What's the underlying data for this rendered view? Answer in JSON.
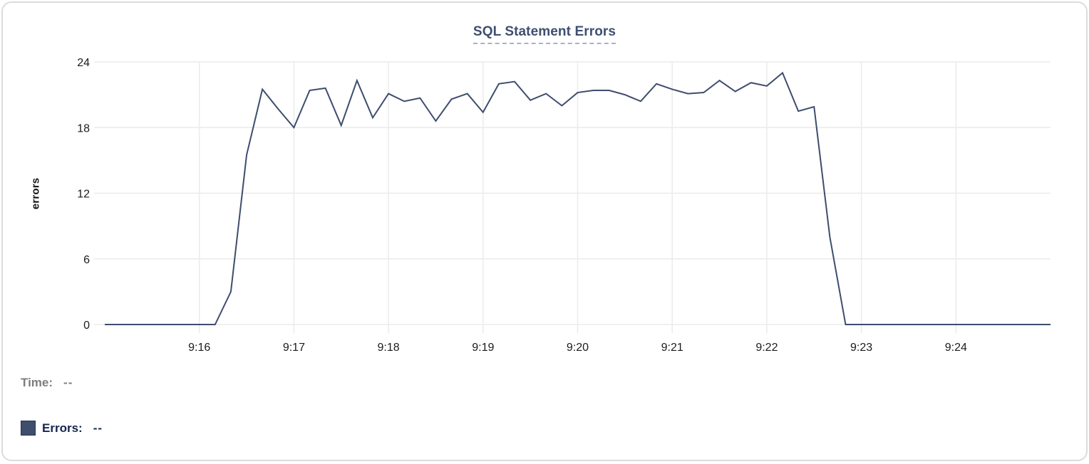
{
  "chart_data": {
    "type": "line",
    "title": "SQL Statement Errors",
    "ylabel": "errors",
    "xlabel": "",
    "ylim": [
      0,
      24
    ],
    "y_ticks": [
      0,
      6,
      12,
      18,
      24
    ],
    "x_ticks": [
      "9:16",
      "9:17",
      "9:18",
      "9:19",
      "9:20",
      "9:21",
      "9:22",
      "9:23",
      "9:24"
    ],
    "grid": true,
    "legend_position": "bottom-left",
    "x": [
      "9:15:00",
      "9:15:10",
      "9:15:20",
      "9:15:30",
      "9:15:40",
      "9:15:50",
      "9:16:00",
      "9:16:10",
      "9:16:20",
      "9:16:30",
      "9:16:40",
      "9:16:50",
      "9:17:00",
      "9:17:10",
      "9:17:20",
      "9:17:30",
      "9:17:40",
      "9:17:50",
      "9:18:00",
      "9:18:10",
      "9:18:20",
      "9:18:30",
      "9:18:40",
      "9:18:50",
      "9:19:00",
      "9:19:10",
      "9:19:20",
      "9:19:30",
      "9:19:40",
      "9:19:50",
      "9:20:00",
      "9:20:10",
      "9:20:20",
      "9:20:30",
      "9:20:40",
      "9:20:50",
      "9:21:00",
      "9:21:10",
      "9:21:20",
      "9:21:30",
      "9:21:40",
      "9:21:50",
      "9:22:00",
      "9:22:10",
      "9:22:20",
      "9:22:30",
      "9:22:40",
      "9:22:50",
      "9:23:00",
      "9:23:10",
      "9:23:20",
      "9:23:30",
      "9:23:40",
      "9:23:50",
      "9:24:00",
      "9:24:10",
      "9:24:20",
      "9:24:30",
      "9:24:40",
      "9:24:50",
      "9:25:00"
    ],
    "series": [
      {
        "name": "Errors",
        "values": [
          0,
          0,
          0,
          0,
          0,
          0,
          0,
          0,
          3,
          15.5,
          21.5,
          19.7,
          18,
          21.4,
          21.6,
          18.2,
          22.3,
          18.9,
          21.1,
          20.4,
          20.7,
          18.6,
          20.6,
          21.1,
          19.4,
          22,
          22.2,
          20.5,
          21.1,
          20,
          21.2,
          21.4,
          21.4,
          21,
          20.4,
          22,
          21.5,
          21.1,
          21.2,
          22.3,
          21.3,
          22.1,
          21.8,
          23,
          19.5,
          19.9,
          8,
          0,
          0,
          0,
          0,
          0,
          0,
          0,
          0,
          0,
          0,
          0,
          0,
          0,
          0
        ]
      }
    ],
    "colors": {
      "line": "#3e4d6e",
      "grid": "#ebebeb",
      "tick_label": "#1b1b1b",
      "title": "#3e4f70",
      "title_underline": "#a6b2cd",
      "swatch": "#3f4e6c"
    }
  },
  "hover": {
    "time_label": "Time:",
    "time_value": "--",
    "errors_label": "Errors:",
    "errors_value": "--"
  }
}
